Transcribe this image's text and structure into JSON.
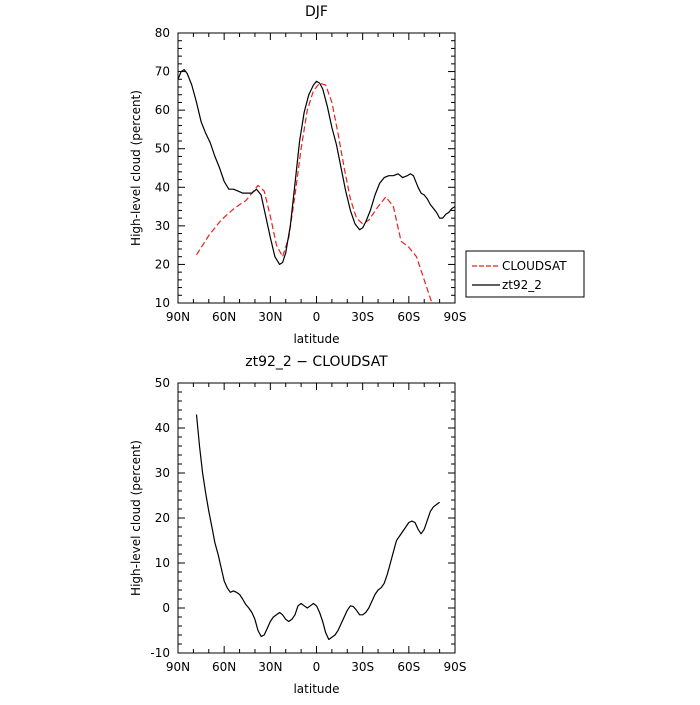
{
  "chart_data": [
    {
      "type": "line",
      "title": "DJF",
      "xlabel": "latitude",
      "ylabel": "High-level cloud (percent)",
      "xlim": [
        90,
        -90
      ],
      "ylim": [
        10,
        80
      ],
      "xticks": [
        {
          "value": 90,
          "label": "90N"
        },
        {
          "value": 60,
          "label": "60N"
        },
        {
          "value": 30,
          "label": "30N"
        },
        {
          "value": 0,
          "label": "0"
        },
        {
          "value": -30,
          "label": "30S"
        },
        {
          "value": -60,
          "label": "60S"
        },
        {
          "value": -90,
          "label": "90S"
        }
      ],
      "yticks": [
        10,
        20,
        30,
        40,
        50,
        60,
        70,
        80
      ],
      "grid": false,
      "legend": "right",
      "series": [
        {
          "name": "CLOUDSAT",
          "color": "#e8211e",
          "dash": "dashed",
          "x": [
            78,
            70,
            62,
            55,
            50,
            46,
            42,
            38,
            34,
            30,
            26,
            22,
            18,
            14,
            10,
            6,
            2,
            -2,
            -6,
            -10,
            -14,
            -18,
            -22,
            -26,
            -30,
            -34,
            -40,
            -45,
            -50,
            -55,
            -60,
            -65,
            -70,
            -75,
            -80
          ],
          "y": [
            22.5,
            27.5,
            31.5,
            34,
            35.5,
            36.5,
            38.5,
            40.5,
            39,
            32.5,
            25,
            22,
            27,
            38,
            50,
            60,
            65,
            67,
            66.5,
            62,
            54,
            45,
            37,
            32,
            30.5,
            31.5,
            35,
            37.5,
            35,
            26,
            24.5,
            22,
            16,
            10,
            3
          ]
        },
        {
          "name": "zt92_2",
          "color": "#000000",
          "dash": "solid",
          "x": [
            90,
            88,
            86,
            84,
            81,
            78,
            75,
            72,
            69,
            66,
            63,
            60,
            57,
            54,
            51,
            48,
            45,
            42,
            39,
            36,
            33,
            30,
            27,
            24,
            22,
            20,
            17,
            14,
            11,
            8,
            5,
            2,
            0,
            -2,
            -4,
            -7,
            -10,
            -13,
            -16,
            -19,
            -22,
            -25,
            -28,
            -30,
            -32,
            -35,
            -38,
            -41,
            -44,
            -47,
            -50,
            -53,
            -56,
            -59,
            -61,
            -63,
            -66,
            -68,
            -70,
            -72,
            -74,
            -76,
            -78,
            -80,
            -82,
            -84,
            -86,
            -88,
            -90
          ],
          "y": [
            68,
            70,
            70.5,
            69.5,
            66.5,
            62,
            57,
            54,
            51.5,
            48,
            45,
            41.5,
            39.5,
            39.5,
            39,
            38.5,
            38.5,
            38.5,
            39.5,
            38,
            32.5,
            27,
            22,
            20,
            20.5,
            23,
            30,
            41,
            52,
            59.5,
            64,
            66.5,
            67.5,
            67,
            65.5,
            61,
            55.5,
            51,
            45,
            39,
            34,
            30.5,
            29,
            29.5,
            31,
            34,
            38,
            41,
            42.5,
            43,
            43,
            43.5,
            42.5,
            43,
            43.5,
            43,
            40,
            38.5,
            38,
            37,
            35.5,
            34.5,
            33.5,
            32,
            32,
            33,
            33.5,
            34.5,
            35
          ]
        }
      ]
    },
    {
      "type": "line",
      "title": "zt92_2 − CLOUDSAT",
      "xlabel": "latitude",
      "ylabel": "High-level cloud (percent)",
      "xlim": [
        90,
        -90
      ],
      "ylim": [
        -10,
        50
      ],
      "xticks": [
        {
          "value": 90,
          "label": "90N"
        },
        {
          "value": 60,
          "label": "60N"
        },
        {
          "value": 30,
          "label": "30N"
        },
        {
          "value": 0,
          "label": "0"
        },
        {
          "value": -30,
          "label": "30S"
        },
        {
          "value": -60,
          "label": "60S"
        },
        {
          "value": -90,
          "label": "90S"
        }
      ],
      "yticks": [
        -10,
        0,
        10,
        20,
        30,
        40,
        50
      ],
      "grid": false,
      "series": [
        {
          "color": "#000000",
          "dash": "solid",
          "x": [
            78,
            76,
            74,
            72,
            70,
            68,
            66,
            64,
            62,
            60,
            58,
            56,
            54,
            52,
            50,
            48,
            46,
            44,
            42,
            40,
            38,
            36,
            34,
            32,
            30,
            28,
            26,
            24,
            22,
            20,
            18,
            16,
            14,
            12,
            10,
            8,
            6,
            4,
            2,
            0,
            -2,
            -4,
            -6,
            -8,
            -10,
            -12,
            -14,
            -16,
            -18,
            -20,
            -22,
            -24,
            -26,
            -28,
            -30,
            -32,
            -34,
            -36,
            -38,
            -40,
            -42,
            -44,
            -46,
            -48,
            -50,
            -52,
            -54,
            -56,
            -58,
            -60,
            -62,
            -64,
            -66,
            -68,
            -70,
            -72,
            -74,
            -76,
            -78,
            -80
          ],
          "y": [
            43,
            36,
            30,
            25.5,
            21.5,
            18,
            14.5,
            12,
            9,
            6,
            4.5,
            3.5,
            3.8,
            3.5,
            3,
            2,
            0.8,
            0,
            -1,
            -2.5,
            -5,
            -6.3,
            -6,
            -4.5,
            -3,
            -2,
            -1.5,
            -1,
            -1.5,
            -2.5,
            -3,
            -2.5,
            -1.5,
            0.5,
            1,
            0.5,
            0,
            0.5,
            1,
            0.5,
            -1,
            -3,
            -5.5,
            -7,
            -6.5,
            -6,
            -5,
            -3.5,
            -2,
            -0.5,
            0.5,
            0.3,
            -0.5,
            -1.5,
            -1.5,
            -1,
            0,
            1.5,
            3,
            4,
            4.5,
            5.5,
            7.5,
            10,
            12.5,
            15,
            16,
            17,
            18,
            19,
            19.3,
            19,
            17.5,
            16.5,
            17.5,
            19.5,
            21.5,
            22.5,
            23,
            23.5
          ]
        }
      ]
    }
  ]
}
